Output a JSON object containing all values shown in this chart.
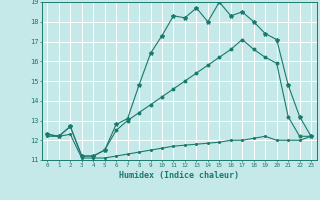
{
  "xlabel": "Humidex (Indice chaleur)",
  "background_color": "#c5e8e8",
  "grid_color": "#ffffff",
  "line_color": "#1a7a6e",
  "xlim": [
    -0.5,
    23.5
  ],
  "ylim": [
    11,
    19
  ],
  "xticks": [
    0,
    1,
    2,
    3,
    4,
    5,
    6,
    7,
    8,
    9,
    10,
    11,
    12,
    13,
    14,
    15,
    16,
    17,
    18,
    19,
    20,
    21,
    22,
    23
  ],
  "yticks": [
    11,
    12,
    13,
    14,
    15,
    16,
    17,
    18,
    19
  ],
  "line1_x": [
    0,
    1,
    2,
    3,
    4,
    5,
    6,
    7,
    8,
    9,
    10,
    11,
    12,
    13,
    14,
    15,
    16,
    17,
    18,
    19,
    20,
    21,
    22,
    23
  ],
  "line1_y": [
    12.3,
    12.2,
    12.7,
    11.2,
    11.2,
    11.5,
    12.8,
    13.1,
    14.8,
    16.4,
    17.3,
    18.3,
    18.2,
    18.7,
    18.0,
    19.0,
    18.3,
    18.5,
    18.0,
    17.4,
    17.1,
    14.8,
    13.2,
    12.2
  ],
  "line2_x": [
    0,
    1,
    2,
    3,
    4,
    5,
    6,
    7,
    8,
    9,
    10,
    11,
    12,
    13,
    14,
    15,
    16,
    17,
    18,
    19,
    20,
    21,
    22,
    23
  ],
  "line2_y": [
    12.3,
    12.2,
    12.7,
    11.2,
    11.2,
    11.5,
    12.5,
    13.0,
    13.4,
    13.8,
    14.2,
    14.6,
    15.0,
    15.4,
    15.8,
    16.2,
    16.6,
    17.1,
    16.6,
    16.2,
    15.9,
    13.2,
    12.2,
    12.2
  ],
  "line3_x": [
    0,
    1,
    2,
    3,
    4,
    5,
    6,
    7,
    8,
    9,
    10,
    11,
    12,
    13,
    14,
    15,
    16,
    17,
    18,
    19,
    20,
    21,
    22,
    23
  ],
  "line3_y": [
    12.2,
    12.2,
    12.3,
    11.1,
    11.1,
    11.1,
    11.2,
    11.3,
    11.4,
    11.5,
    11.6,
    11.7,
    11.75,
    11.8,
    11.85,
    11.9,
    12.0,
    12.0,
    12.1,
    12.2,
    12.0,
    12.0,
    12.0,
    12.2
  ]
}
